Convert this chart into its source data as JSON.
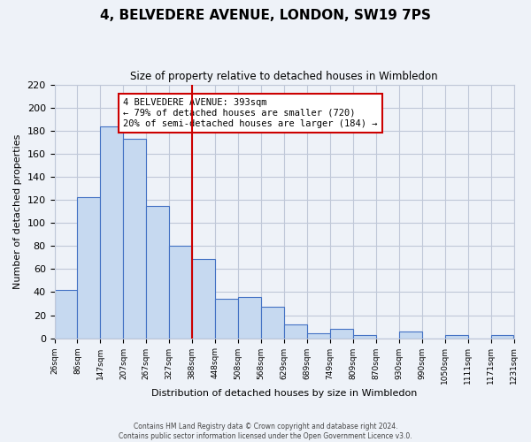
{
  "title": "4, BELVEDERE AVENUE, LONDON, SW19 7PS",
  "subtitle": "Size of property relative to detached houses in Wimbledon",
  "xlabel": "Distribution of detached houses by size in Wimbledon",
  "ylabel": "Number of detached properties",
  "footer_line1": "Contains HM Land Registry data © Crown copyright and database right 2024.",
  "footer_line2": "Contains public sector information licensed under the Open Government Licence v3.0.",
  "bin_labels": [
    "26sqm",
    "86sqm",
    "147sqm",
    "207sqm",
    "267sqm",
    "327sqm",
    "388sqm",
    "448sqm",
    "508sqm",
    "568sqm",
    "629sqm",
    "689sqm",
    "749sqm",
    "809sqm",
    "870sqm",
    "930sqm",
    "990sqm",
    "1050sqm",
    "1111sqm",
    "1171sqm",
    "1231sqm"
  ],
  "bar_heights": [
    42,
    122,
    184,
    173,
    115,
    80,
    69,
    34,
    36,
    27,
    12,
    4,
    8,
    3,
    0,
    6,
    0,
    3,
    0,
    3
  ],
  "bar_color": "#c6d9f0",
  "bar_edge_color": "#4472c4",
  "grid_color": "#c0c8d8",
  "background_color": "#eef2f8",
  "vline_x": 6,
  "vline_color": "#cc0000",
  "annotation_line1": "4 BELVEDERE AVENUE: 393sqm",
  "annotation_line2": "← 79% of detached houses are smaller (720)",
  "annotation_line3": "20% of semi-detached houses are larger (184) →",
  "annotation_box_color": "#ffffff",
  "annotation_box_edge_color": "#cc0000",
  "ylim": [
    0,
    220
  ],
  "yticks": [
    0,
    20,
    40,
    60,
    80,
    100,
    120,
    140,
    160,
    180,
    200,
    220
  ]
}
